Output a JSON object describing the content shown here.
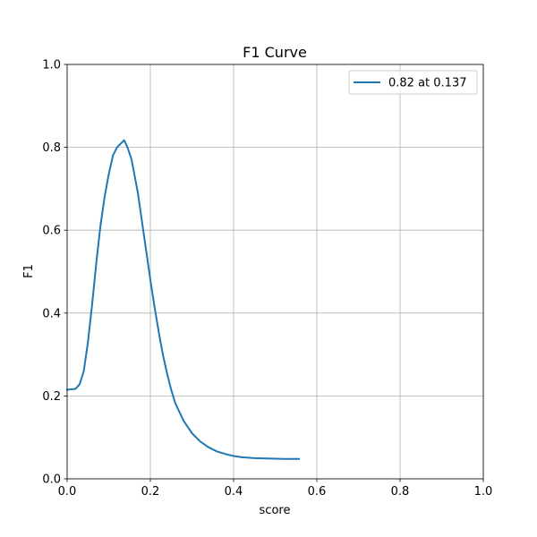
{
  "chart_data": {
    "type": "line",
    "title": "F1 Curve",
    "xlabel": "score",
    "ylabel": "F1",
    "xlim": [
      0.0,
      1.0
    ],
    "ylim": [
      0.0,
      1.0
    ],
    "xticks": [
      "0.0",
      "0.2",
      "0.4",
      "0.6",
      "0.8",
      "1.0"
    ],
    "yticks": [
      "0.0",
      "0.2",
      "0.4",
      "0.6",
      "0.8",
      "1.0"
    ],
    "grid": true,
    "legend_position": "top-right",
    "colors": {
      "line": "#1f77b4",
      "grid": "#b0b0b0"
    },
    "series": [
      {
        "name": "0.82 at 0.137",
        "x": [
          0.0,
          0.02,
          0.03,
          0.04,
          0.05,
          0.06,
          0.07,
          0.08,
          0.09,
          0.1,
          0.11,
          0.12,
          0.13,
          0.137,
          0.145,
          0.155,
          0.17,
          0.18,
          0.19,
          0.2,
          0.21,
          0.22,
          0.23,
          0.24,
          0.25,
          0.26,
          0.28,
          0.3,
          0.32,
          0.34,
          0.36,
          0.38,
          0.4,
          0.42,
          0.45,
          0.48,
          0.52,
          0.557
        ],
        "y": [
          0.215,
          0.217,
          0.228,
          0.26,
          0.33,
          0.42,
          0.52,
          0.61,
          0.68,
          0.735,
          0.78,
          0.8,
          0.81,
          0.817,
          0.8,
          0.77,
          0.69,
          0.62,
          0.55,
          0.48,
          0.415,
          0.355,
          0.3,
          0.255,
          0.215,
          0.182,
          0.14,
          0.11,
          0.09,
          0.076,
          0.066,
          0.06,
          0.055,
          0.052,
          0.05,
          0.049,
          0.048,
          0.048
        ]
      }
    ]
  }
}
